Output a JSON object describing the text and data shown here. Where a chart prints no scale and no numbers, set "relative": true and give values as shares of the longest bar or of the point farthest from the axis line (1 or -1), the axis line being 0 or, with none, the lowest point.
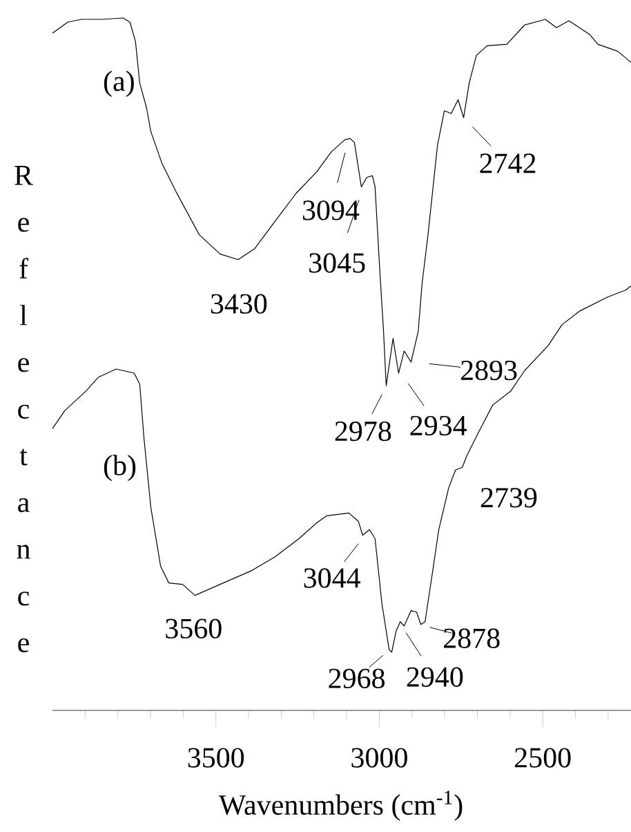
{
  "chart_data": {
    "type": "line",
    "xlabel": "Wavenumbers (cm$^{-1}$)",
    "ylabel": "Reflectance",
    "relative": true,
    "marker": "none",
    "xlim": [
      4000,
      2230
    ],
    "xticks": [
      {
        "value": 3900,
        "label": null
      },
      {
        "value": 3800,
        "label": null
      },
      {
        "value": 3700,
        "label": null
      },
      {
        "value": 3600,
        "label": null
      },
      3500,
      {
        "value": 3400,
        "label": null
      },
      {
        "value": 3300,
        "label": null
      },
      {
        "value": 3200,
        "label": null
      },
      {
        "value": 3100,
        "label": null
      },
      3000,
      {
        "value": 2900,
        "label": null
      },
      {
        "value": 2800,
        "label": null
      },
      {
        "value": 2700,
        "label": null
      },
      {
        "value": 2600,
        "label": null
      },
      2500,
      {
        "value": 2400,
        "label": null
      },
      {
        "value": 2300,
        "label": null
      }
    ],
    "series": [
      {
        "name": "(a)",
        "color": "#000000",
        "x": [
          4000,
          3953,
          3911,
          3847,
          3784,
          3763,
          3746,
          3733,
          3712,
          3699,
          3665,
          3623,
          3551,
          3487,
          3432,
          3381,
          3318,
          3254,
          3191,
          3148,
          3106,
          3089,
          3076,
          3055,
          3038,
          3021,
          3013,
          3000,
          2987,
          2979,
          2958,
          2941,
          2924,
          2903,
          2881,
          2869,
          2851,
          2822,
          2801,
          2780,
          2759,
          2742,
          2725,
          2703,
          2670,
          2610,
          2555,
          2492,
          2458,
          2420,
          2356,
          2331,
          2271,
          2230
        ],
        "values": [
          0.978,
          0.994,
          0.998,
          0.998,
          1.0,
          0.994,
          0.966,
          0.906,
          0.87,
          0.836,
          0.79,
          0.75,
          0.687,
          0.659,
          0.651,
          0.667,
          0.707,
          0.747,
          0.778,
          0.806,
          0.824,
          0.826,
          0.82,
          0.756,
          0.77,
          0.772,
          0.756,
          0.647,
          0.547,
          0.469,
          0.537,
          0.487,
          0.519,
          0.503,
          0.547,
          0.617,
          0.687,
          0.816,
          0.866,
          0.862,
          0.882,
          0.856,
          0.906,
          0.946,
          0.96,
          0.962,
          0.99,
          0.998,
          0.986,
          0.996,
          0.976,
          0.962,
          0.952,
          0.936
        ]
      },
      {
        "name": "(b)",
        "color": "#000000",
        "x": [
          4000,
          3962,
          3898,
          3860,
          3805,
          3750,
          3733,
          3720,
          3699,
          3669,
          3644,
          3602,
          3564,
          3487,
          3390,
          3318,
          3246,
          3191,
          3161,
          3093,
          3064,
          3051,
          3030,
          3013,
          2992,
          2970,
          2962,
          2949,
          2936,
          2924,
          2903,
          2886,
          2873,
          2860,
          2839,
          2818,
          2788,
          2767,
          2746,
          2733,
          2695,
          2653,
          2598,
          2555,
          2483,
          2441,
          2386,
          2301,
          2246,
          2230
        ],
        "values": [
          0.407,
          0.433,
          0.461,
          0.481,
          0.493,
          0.487,
          0.471,
          0.393,
          0.293,
          0.208,
          0.184,
          0.182,
          0.166,
          0.182,
          0.202,
          0.222,
          0.248,
          0.271,
          0.281,
          0.285,
          0.273,
          0.253,
          0.261,
          0.248,
          0.154,
          0.088,
          0.084,
          0.114,
          0.128,
          0.122,
          0.144,
          0.142,
          0.124,
          0.128,
          0.194,
          0.261,
          0.321,
          0.347,
          0.351,
          0.367,
          0.403,
          0.441,
          0.461,
          0.491,
          0.527,
          0.557,
          0.577,
          0.597,
          0.607,
          0.613
        ]
      }
    ],
    "annotations": [
      {
        "text": "3430",
        "x": 3430,
        "y": 0.651
      },
      {
        "text": "3094",
        "x": 3094,
        "y": 0.826
      },
      {
        "text": "3045",
        "x": 3045,
        "y": 0.76
      },
      {
        "text": "2742",
        "x": 2742,
        "y": 0.856
      },
      {
        "text": "2893",
        "x": 2893,
        "y": 0.503
      },
      {
        "text": "2978",
        "x": 2978,
        "y": 0.469
      },
      {
        "text": "2934",
        "x": 2934,
        "y": 0.487
      },
      {
        "text": "2739",
        "x": 2739,
        "y": 0.351
      },
      {
        "text": "3044",
        "x": 3044,
        "y": 0.253
      },
      {
        "text": "3560",
        "x": 3560,
        "y": 0.166
      },
      {
        "text": "2968",
        "x": 2968,
        "y": 0.088
      },
      {
        "text": "2940",
        "x": 2940,
        "y": 0.128
      },
      {
        "text": "2878",
        "x": 2878,
        "y": 0.124
      }
    ]
  }
}
